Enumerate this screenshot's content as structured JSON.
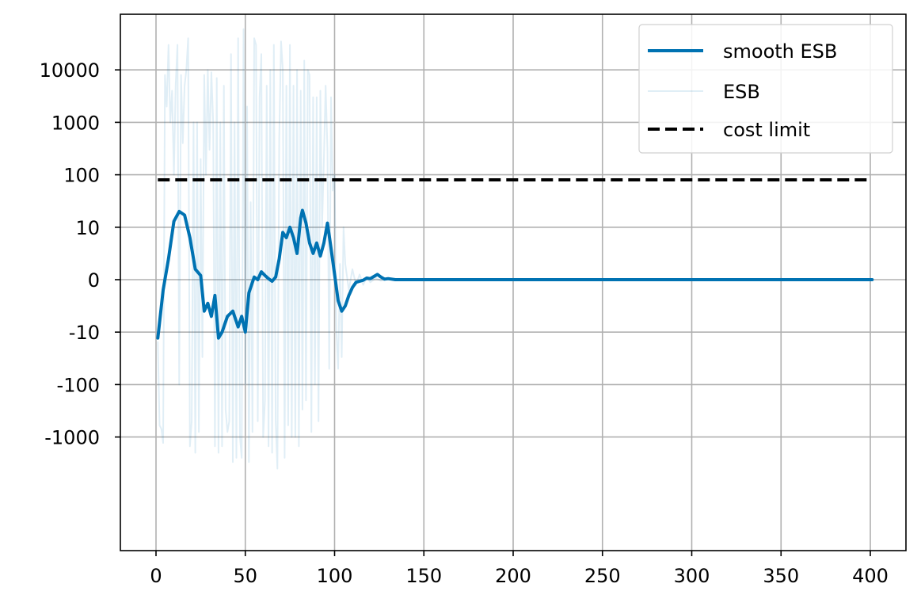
{
  "chart_data": {
    "type": "line",
    "title": "",
    "xlabel": "",
    "ylabel": "",
    "xlim": [
      -20,
      420
    ],
    "x_ticks": [
      0,
      50,
      100,
      150,
      200,
      250,
      300,
      350,
      400
    ],
    "x_tick_labels": [
      "0",
      "50",
      "100",
      "150",
      "200",
      "250",
      "300",
      "350",
      "400"
    ],
    "y_scale": "symlog",
    "y_ticks": [
      10000,
      1000,
      100,
      10,
      0,
      -10,
      -100,
      -1000
    ],
    "y_tick_labels": [
      "10000",
      "1000",
      "100",
      "10",
      "0",
      "-10",
      "-100",
      "-1000"
    ],
    "grid": true,
    "legend_placement": "top-right",
    "colors": {
      "smooth": "#0072b2",
      "raw": "#0072b2",
      "limit": "#000000",
      "grid": "#b0b0b0"
    },
    "series": [
      {
        "name": "smooth ESB",
        "style": "solid",
        "x": [
          1,
          4,
          7,
          10,
          13,
          16,
          19,
          22,
          25,
          27,
          29,
          31,
          33,
          35,
          37,
          40,
          43,
          46,
          48,
          50,
          52,
          55,
          57,
          59,
          61,
          63,
          65,
          67,
          69,
          71,
          73,
          75,
          77,
          79,
          81,
          82,
          84,
          86,
          88,
          90,
          92,
          94,
          96,
          98,
          100,
          102,
          104,
          106,
          108,
          110,
          112,
          114,
          116,
          118,
          120,
          122,
          124,
          126,
          128,
          130,
          134,
          140,
          150,
          200,
          250,
          300,
          350,
          401
        ],
        "y": [
          -13,
          -2,
          4,
          13,
          20,
          17,
          8,
          2,
          0.8,
          -6,
          -4.5,
          -7,
          -3,
          -13,
          -10,
          -7,
          -6,
          -9,
          -7,
          -10,
          -2.5,
          0.5,
          0,
          1.5,
          0.8,
          0.2,
          -0.3,
          0.5,
          4,
          9,
          8,
          10,
          8,
          5,
          15,
          21,
          12,
          7,
          5,
          7,
          4.5,
          7,
          12,
          6,
          1,
          -4,
          -6,
          -5,
          -3,
          -1.5,
          -0.5,
          -0.3,
          -0.1,
          0.3,
          0.2,
          0.6,
          1,
          0.5,
          0.1,
          0.2,
          0,
          0,
          0,
          0,
          0,
          0,
          0,
          0
        ]
      },
      {
        "name": "ESB",
        "style": "faint",
        "x": [
          1,
          2,
          3,
          4,
          5,
          6,
          7,
          8,
          9,
          10,
          11,
          12,
          13,
          14,
          15,
          16,
          17,
          18,
          19,
          20,
          21,
          22,
          23,
          24,
          25,
          26,
          27,
          28,
          29,
          30,
          31,
          32,
          33,
          34,
          35,
          36,
          37,
          38,
          39,
          40,
          41,
          42,
          43,
          44,
          45,
          46,
          47,
          48,
          49,
          50,
          51,
          52,
          53,
          54,
          55,
          56,
          57,
          58,
          59,
          60,
          61,
          62,
          63,
          64,
          65,
          66,
          67,
          68,
          69,
          70,
          71,
          72,
          73,
          74,
          75,
          76,
          77,
          78,
          79,
          80,
          81,
          82,
          83,
          84,
          85,
          86,
          87,
          88,
          89,
          90,
          91,
          92,
          93,
          94,
          95,
          96,
          97,
          98,
          99,
          100,
          101,
          102,
          103,
          104,
          105,
          106,
          108,
          110,
          112,
          114,
          116,
          118,
          120,
          123,
          126,
          130,
          135
        ],
        "y": [
          -15,
          -600,
          -700,
          -1300,
          8000,
          2000,
          30000,
          1000,
          4000,
          100,
          5000,
          30000,
          -100,
          8000,
          400,
          5000,
          10000,
          40000,
          -1500,
          -500,
          1000,
          -2000,
          1000,
          -800,
          200,
          -30,
          8000,
          100,
          10000,
          300,
          9000,
          1000,
          -1500,
          7000,
          -2000,
          1000,
          -1500,
          5000,
          -300,
          -800,
          -500,
          20000,
          -3000,
          1000,
          -2500,
          40000,
          -1000,
          -2500,
          60000,
          -100,
          2000,
          -3000,
          30,
          -800,
          40000,
          30000,
          -500,
          3000,
          20000,
          -1000,
          -200,
          5000,
          -1500,
          10000,
          -2000,
          30000,
          -500,
          -4000,
          500,
          35000,
          10000,
          -2500,
          5000,
          -600,
          30000,
          -1000,
          5000,
          -1000,
          10000,
          -1500,
          4000,
          -300,
          15000,
          -200,
          10000,
          8000,
          -800,
          3000,
          -100,
          3000,
          -500,
          4000,
          10,
          200,
          5000,
          300,
          -50,
          3000,
          50,
          100,
          -10,
          -50,
          3,
          -30,
          10,
          3,
          -2,
          2,
          -1,
          1,
          -1,
          0.5,
          -0.5,
          0.3,
          -0.2,
          0.1,
          0
        ]
      },
      {
        "name": "cost limit",
        "style": "dashed",
        "x": [
          1,
          401
        ],
        "y": [
          80,
          80
        ]
      }
    ]
  }
}
